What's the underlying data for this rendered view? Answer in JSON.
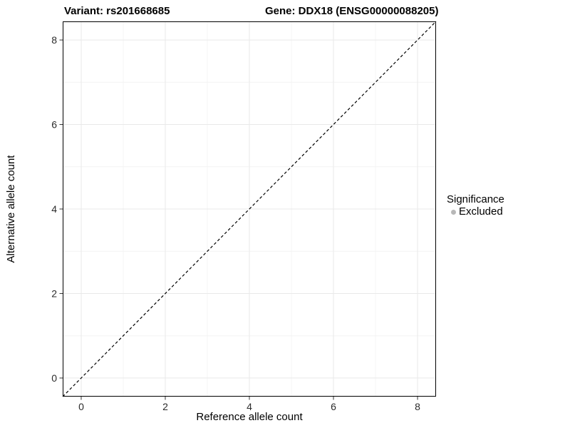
{
  "chart_data": {
    "type": "scatter",
    "title_left": "Variant: rs201668685",
    "title_right": "Gene: DDX18 (ENSG00000088205)",
    "xlabel": "Reference allele count",
    "ylabel": "Alternative allele count",
    "xlim": [
      -0.44,
      8.44
    ],
    "ylim": [
      -0.44,
      8.44
    ],
    "xticks": [
      0,
      2,
      4,
      6,
      8
    ],
    "yticks": [
      0,
      2,
      4,
      6,
      8
    ],
    "minor_xticks": [
      1,
      3,
      5,
      7
    ],
    "minor_yticks": [
      1,
      3,
      5,
      7
    ],
    "points": [],
    "reference_line": {
      "kind": "identity",
      "slope": 1,
      "intercept": 0,
      "style": "dashed",
      "color": "#000000"
    },
    "grid": {
      "major_color": "#e9e9e9",
      "minor_color": "#f4f4f4"
    },
    "panel_border_color": "#000000",
    "tick_color": "#333333",
    "legend": {
      "title": "Significance",
      "position": "right",
      "items": [
        {
          "label": "Excluded",
          "color": "#b8b8b8"
        }
      ]
    }
  }
}
